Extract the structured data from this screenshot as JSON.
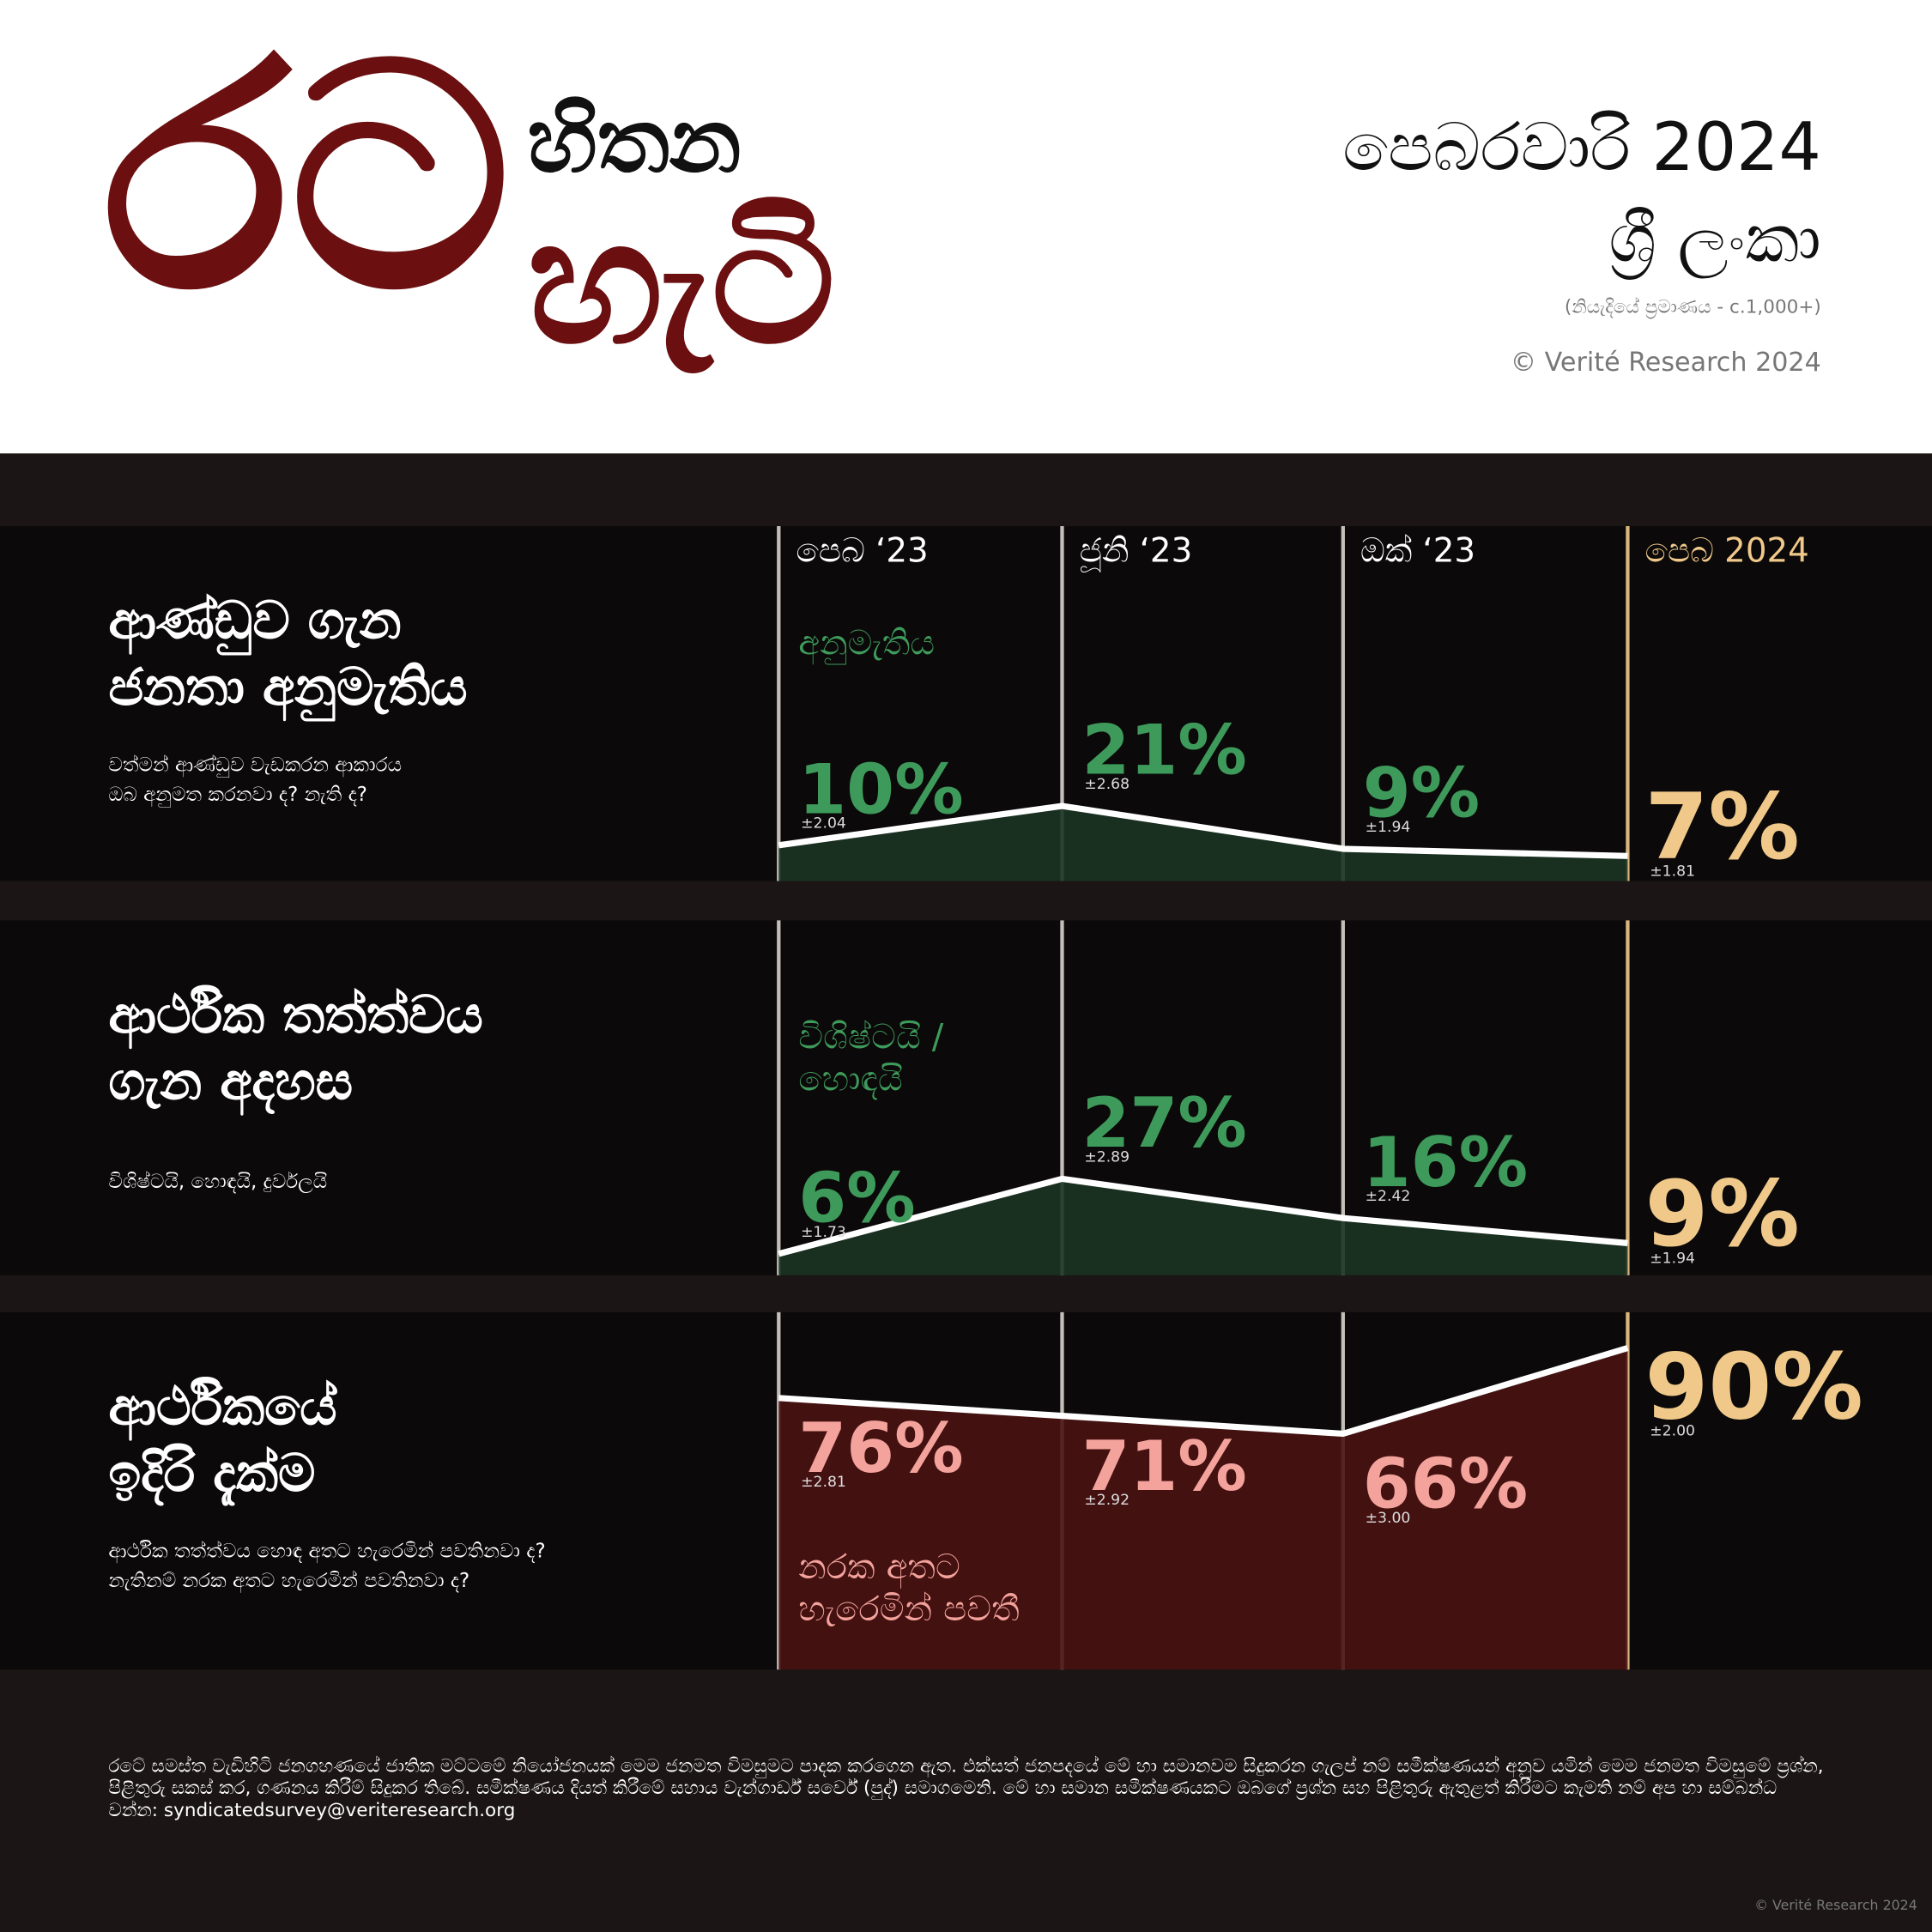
{
  "header": {
    "logo": [
      "රට",
      "හිතන",
      "හැටි"
    ],
    "date": "පෙබරවාරි 2024",
    "country": "ශ්‍රී ලංකා",
    "sample": "(නියැදියේ ප්‍රමාණය - c.1,000+)",
    "copyright": "© Verité Research 2024"
  },
  "chart_data": [
    {
      "type": "area",
      "title": "ආණ්ඩුව ගැන\nජනතා අනුමැතිය",
      "subtitle": "වත්මන් ආණ්ඩුව වැඩකරන ආකාරය\nඔබ අනුමත කරනවා ද? නැති ද?",
      "categories": [
        "පෙබ ‘23",
        "ජූනි ‘23",
        "ඔක් ‘23",
        "පෙබ 2024"
      ],
      "ylim": [
        0,
        100
      ],
      "label_position": "above",
      "series": [
        {
          "name": "අනුමැතිය",
          "color": "#3e9a5b",
          "fill": "#1b3424",
          "values": [
            10,
            21,
            9,
            7
          ],
          "value_labels": [
            "10%",
            "21%",
            "9%",
            "7%"
          ],
          "errors": [
            2.04,
            2.68,
            1.94,
            1.81
          ],
          "error_labels": [
            "±2.04",
            "±2.68",
            "±1.94",
            "±1.81"
          ]
        }
      ]
    },
    {
      "type": "area",
      "title": "ආර්ථික තත්ත්වය\nගැන අදහස",
      "subtitle": "විශිෂ්ටයි, හොඳයි, දුර්වලයි",
      "ylim": [
        0,
        100
      ],
      "label_position": "above",
      "series": [
        {
          "name": "විශිෂ්ටයි /\nහොඳයි",
          "color": "#3e9a5b",
          "fill": "#1b3424",
          "values": [
            6,
            27,
            16,
            9
          ],
          "value_labels": [
            "6%",
            "27%",
            "16%",
            "9%"
          ],
          "errors": [
            1.73,
            2.89,
            2.42,
            1.94
          ],
          "error_labels": [
            "±1.73",
            "±2.89",
            "±2.42",
            "±1.94"
          ]
        }
      ]
    },
    {
      "type": "area",
      "title": "ආර්ථිකයේ\nඉදිරි දැක්ම",
      "subtitle": "ආර්ථික තත්ත්වය හොඳ අතට හැරෙමින් පවතිනවා ද?\nනැතිනම් නරක අතට හැරෙමින් පවතිනවා ද?",
      "ylim": [
        0,
        100
      ],
      "label_position": "below",
      "series": [
        {
          "name": "නරක අතට\nහැරෙමින් පවතී",
          "color": "#f4a39c",
          "fill": "#4a1313",
          "values": [
            76,
            71,
            66,
            90
          ],
          "value_labels": [
            "76%",
            "71%",
            "66%",
            "90%"
          ],
          "errors": [
            2.81,
            2.92,
            3.0,
            2.0
          ],
          "error_labels": [
            "±2.81",
            "±2.92",
            "±3.00",
            "±2.00"
          ]
        }
      ]
    }
  ],
  "latest_color": "#f0c98a",
  "footer": {
    "text": "රටේ සමස්ත වැඩිහිටි ජනගහණයේ ජාතික මට්ටමේ නියෝජනයක් මෙම ජනමත විමසුමට පාදක කරගෙන ඇත. එක්සත් ජනපදයේ මේ හා සමානවම සිදුකරන ගැලප් නම් සමීක්ෂණයන් අනුව යමින් මෙම ජනමත විමසුමේ ප්‍රශ්න, පිළිතුරු සකස් කර, ගණනය කිරීම් සිදුකර තිබේ. සමීක්ෂණය දියත් කිරීමේ සහාය වැන්ගාර්ඩ් සර්වේ (පුද්) සමාගමෙනි. මේ හා සමාන සමීක්ෂණයකට ඔබගේ ප්‍රශ්න සහ පිළිතුරු ඇතුළත් කිරීමට කැමති නම් අප හා සම්බන්ධ වන්න: syndicatedsurvey@veriteresearch.org",
    "copyright": "© Verité Research 2024"
  }
}
